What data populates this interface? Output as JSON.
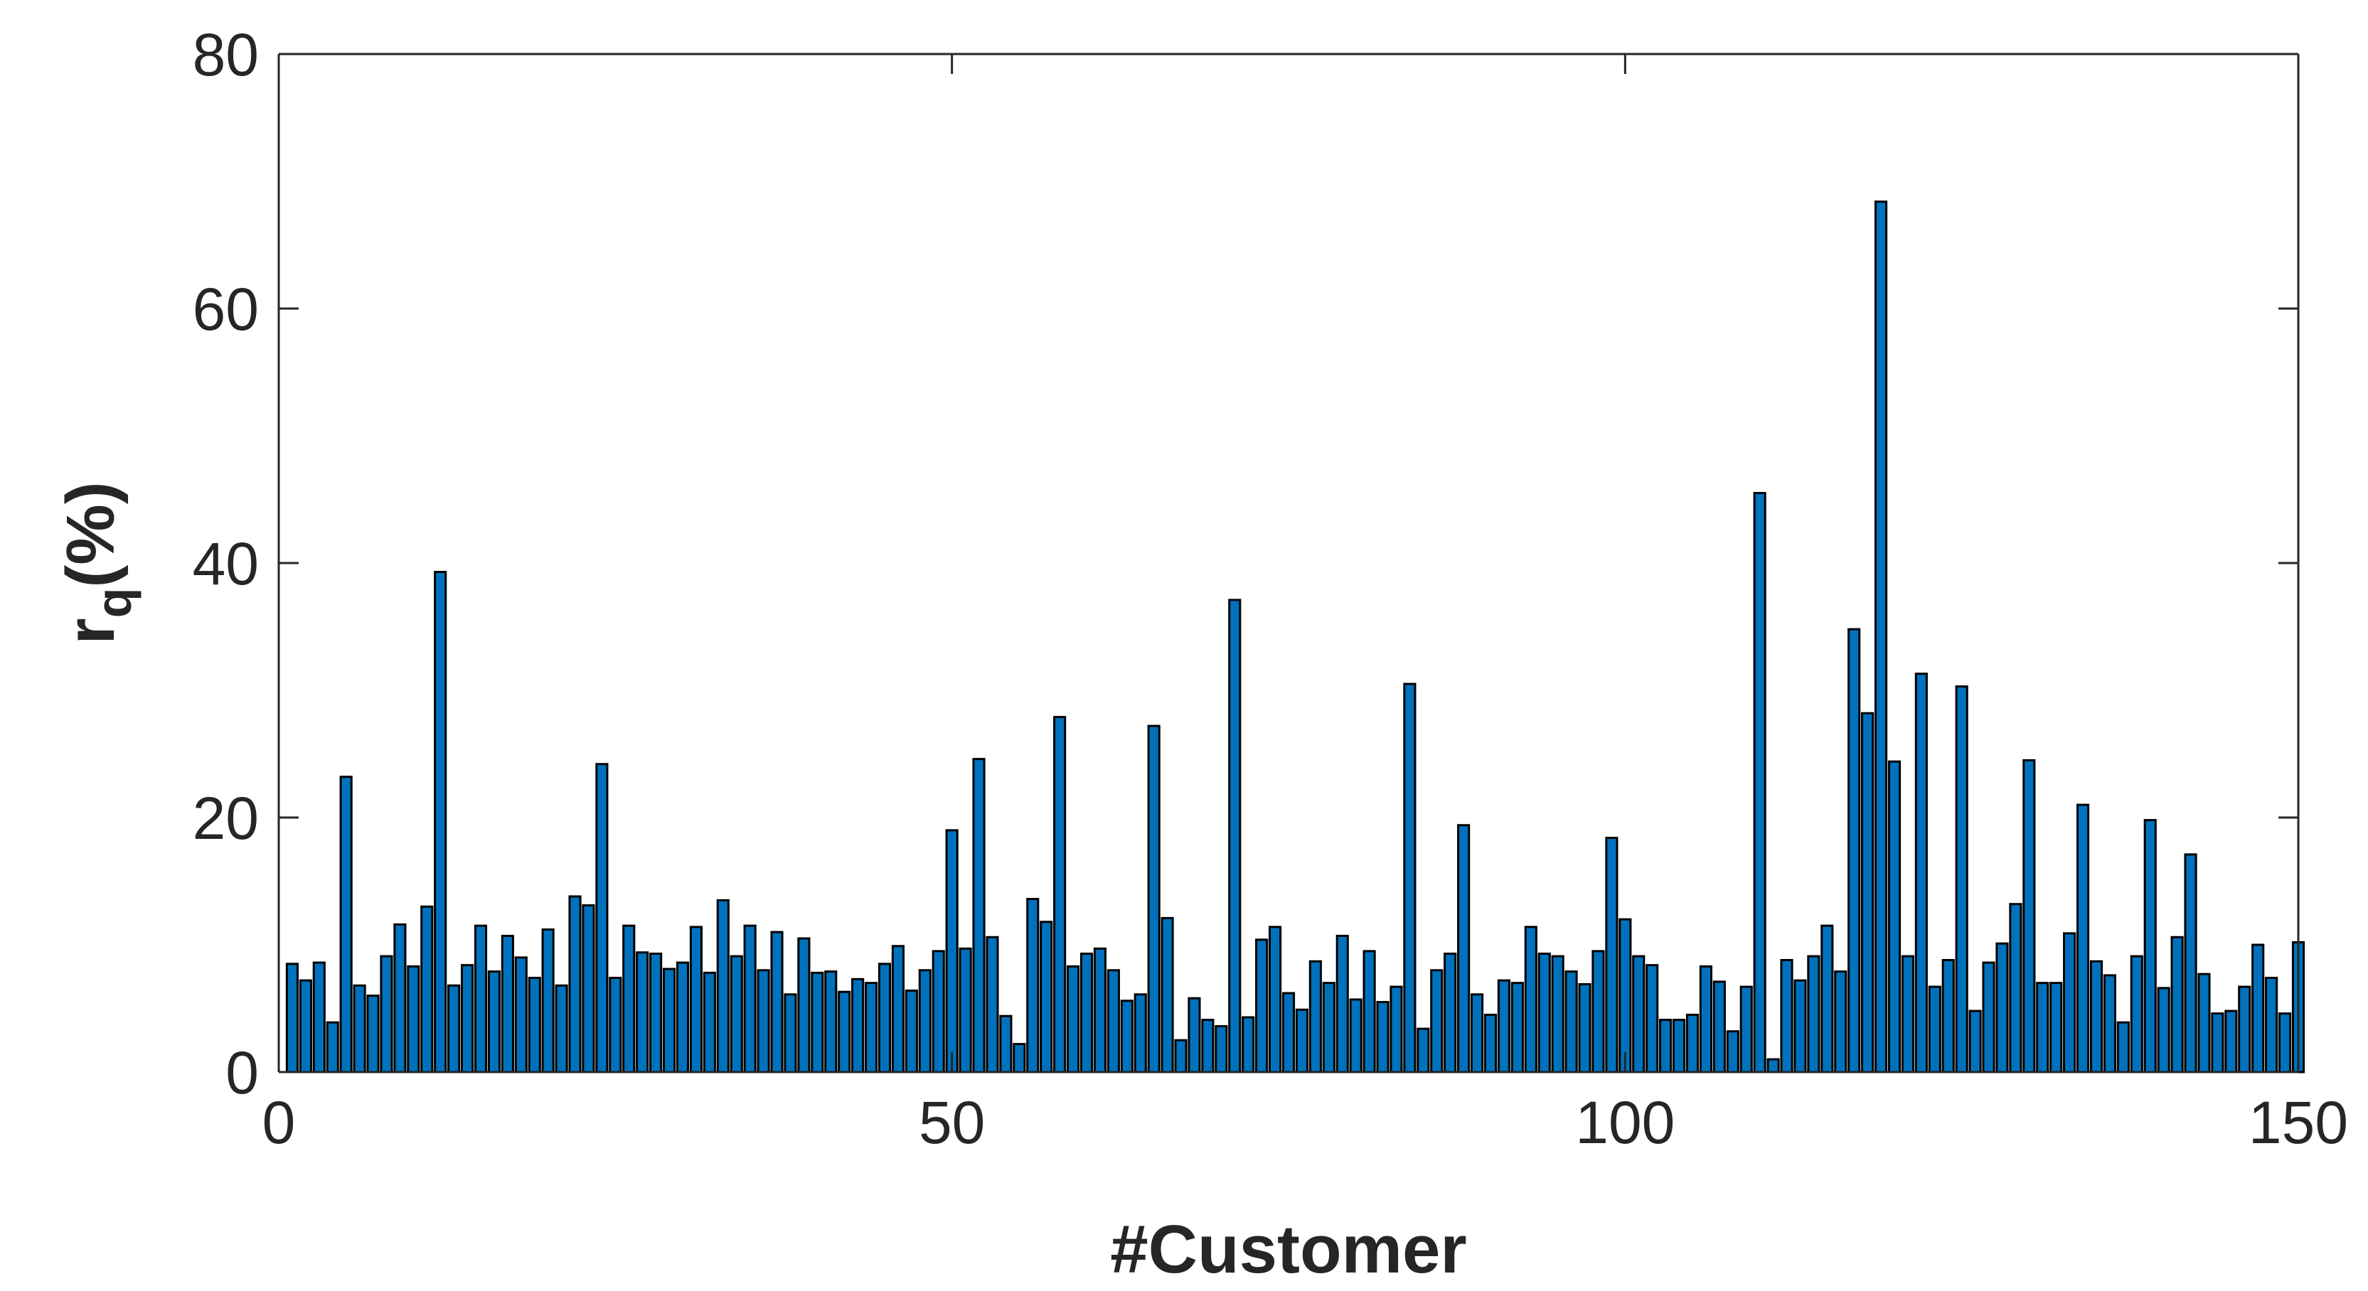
{
  "chart_data": {
    "type": "bar",
    "xlabel": "#Customer",
    "ylabel_main": "r",
    "ylabel_sub": "q",
    "ylabel_suffix": "(%)",
    "xlim": [
      0,
      150
    ],
    "ylim": [
      0,
      80
    ],
    "xticks": [
      0,
      50,
      100,
      150
    ],
    "xtick_labels": [
      "0",
      "50",
      "100",
      "150"
    ],
    "yticks": [
      0,
      20,
      40,
      60,
      80
    ],
    "ytick_labels": [
      "0",
      "20",
      "40",
      "60",
      "80"
    ],
    "grid": false,
    "legend": false,
    "bar_color": "#0072BD",
    "edge_color": "#000000",
    "x": [
      1,
      2,
      3,
      4,
      5,
      6,
      7,
      8,
      9,
      10,
      11,
      12,
      13,
      14,
      15,
      16,
      17,
      18,
      19,
      20,
      21,
      22,
      23,
      24,
      25,
      26,
      27,
      28,
      29,
      30,
      31,
      32,
      33,
      34,
      35,
      36,
      37,
      38,
      39,
      40,
      41,
      42,
      43,
      44,
      45,
      46,
      47,
      48,
      49,
      50,
      51,
      52,
      53,
      54,
      55,
      56,
      57,
      58,
      59,
      60,
      61,
      62,
      63,
      64,
      65,
      66,
      67,
      68,
      69,
      70,
      71,
      72,
      73,
      74,
      75,
      76,
      77,
      78,
      79,
      80,
      81,
      82,
      83,
      84,
      85,
      86,
      87,
      88,
      89,
      90,
      91,
      92,
      93,
      94,
      95,
      96,
      97,
      98,
      99,
      100,
      101,
      102,
      103,
      104,
      105,
      106,
      107,
      108,
      109,
      110,
      111,
      112,
      113,
      114,
      115,
      116,
      117,
      118,
      119,
      120,
      121,
      122,
      123,
      124,
      125,
      126,
      127,
      128,
      129,
      130,
      131,
      132,
      133,
      134,
      135,
      136,
      137,
      138,
      139,
      140,
      141,
      142,
      143,
      144,
      145,
      146,
      147,
      148,
      149,
      150
    ],
    "values": [
      8.5,
      7.2,
      8.6,
      3.9,
      23.2,
      6.8,
      6.0,
      9.1,
      11.6,
      8.3,
      13.0,
      39.3,
      6.8,
      8.4,
      11.5,
      7.9,
      10.7,
      9.0,
      7.4,
      11.2,
      6.8,
      13.8,
      13.1,
      24.2,
      7.4,
      11.5,
      9.4,
      9.3,
      8.1,
      8.6,
      11.4,
      7.8,
      13.5,
      9.1,
      11.5,
      8.0,
      11.0,
      6.1,
      10.5,
      7.8,
      7.9,
      6.3,
      7.3,
      7.0,
      8.5,
      9.9,
      6.4,
      8.0,
      9.5,
      19.0,
      9.7,
      24.6,
      10.6,
      4.4,
      2.2,
      13.6,
      11.8,
      27.9,
      8.3,
      9.3,
      9.7,
      8.0,
      5.6,
      6.1,
      27.2,
      12.1,
      2.5,
      5.8,
      4.1,
      3.6,
      37.1,
      4.3,
      10.4,
      11.4,
      6.2,
      4.9,
      8.7,
      7.0,
      10.7,
      5.7,
      9.5,
      5.5,
      6.7,
      30.5,
      3.4,
      8.0,
      9.3,
      19.4,
      6.1,
      4.5,
      7.2,
      7.0,
      11.4,
      9.3,
      9.1,
      7.9,
      6.9,
      9.5,
      18.4,
      12.0,
      9.1,
      8.4,
      4.1,
      4.1,
      4.5,
      8.3,
      7.1,
      3.2,
      6.7,
      45.5,
      1.0,
      8.8,
      7.2,
      9.1,
      11.5,
      7.9,
      34.8,
      28.2,
      68.4,
      24.4,
      9.1,
      31.3,
      6.7,
      8.8,
      30.3,
      4.8,
      8.6,
      10.1,
      13.2,
      24.5,
      7.0,
      7.0,
      10.9,
      21.0,
      8.7,
      7.6,
      3.9,
      9.1,
      19.8,
      6.6,
      10.6,
      17.1,
      7.7,
      4.6,
      4.8,
      6.7,
      10.0,
      7.4,
      4.6,
      10.2
    ]
  }
}
